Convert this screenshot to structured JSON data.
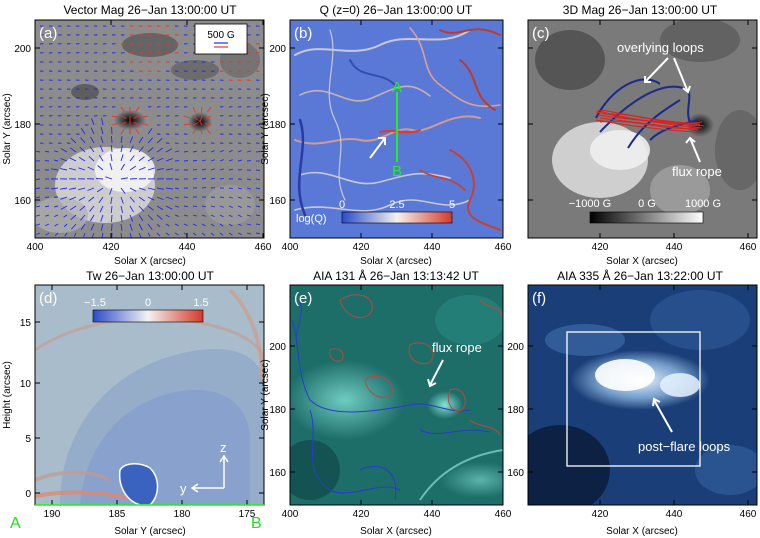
{
  "panels": [
    {
      "letter": "(a)",
      "title": "Vector Mag   26−Jan 13:00:00 UT",
      "xlabel": "Solar X (arcsec)",
      "ylabel": "Solar Y (arcsec)",
      "xticks": [
        "400",
        "420",
        "440",
        "460"
      ],
      "yticks": [
        "160",
        "180",
        "200"
      ],
      "scale_label": "500 G",
      "colors": {
        "background": "#8c8c8c",
        "vector_pos": "#ff2a2a",
        "vector_neg": "#2323ff"
      }
    },
    {
      "letter": "(b)",
      "title": "Q (z=0)   26−Jan 13:00:00 UT",
      "xlabel": "Solar X (arcsec)",
      "ylabel": "Solar Y (arcsec)",
      "xticks": [
        "400",
        "420",
        "440",
        "460"
      ],
      "yticks": [
        "160",
        "180",
        "200"
      ],
      "slice_label_a": "A",
      "slice_label_b": "B",
      "colorbar_ticks": [
        "0",
        "2.5",
        "5"
      ],
      "colorbar_label": "log(Q)",
      "colors": {
        "background": "#5a79d6",
        "slice": "#22ee22"
      }
    },
    {
      "letter": "(c)",
      "title": "3D Mag   26−Jan 13:00:00 UT",
      "xlabel": "Solar X (arcsec)",
      "xticks": [
        "420",
        "440",
        "460"
      ],
      "yticks": [
        "160",
        "180",
        "200"
      ],
      "annotation_loops": "overlying loops",
      "annotation_rope": "flux rope",
      "colorbar_ticks": [
        "−1000 G",
        "0 G",
        "1000 G"
      ],
      "colors": {
        "background": "#7a7a7a",
        "loops": "#1a2a8a",
        "rope": "#e02020"
      }
    },
    {
      "letter": "(d)",
      "title": "Tw   26−Jan 13:00:00 UT",
      "xlabel": "Solar Y (arcsec)",
      "ylabel": "Height (arcsec)",
      "xticks": [
        "190",
        "185",
        "180",
        "175"
      ],
      "yticks": [
        "0",
        "5",
        "10",
        "15"
      ],
      "colorbar_ticks": [
        "−1.5",
        "0",
        "1.5"
      ],
      "axis_z": "z",
      "axis_y": "y",
      "end_label_a": "A",
      "end_label_b": "B",
      "colors": {
        "background": "#a9bccb",
        "core": "#3a63c0",
        "end_labels": "#22dd22"
      }
    },
    {
      "letter": "(e)",
      "title": "AIA 131 Å   26−Jan 13:13:42 UT",
      "xlabel": "Solar X (arcsec)",
      "ylabel": "Solar Y (arcsec)",
      "xticks": [
        "400",
        "420",
        "440",
        "460"
      ],
      "yticks": [
        "160",
        "180",
        "200"
      ],
      "annotation": "flux rope",
      "colors": {
        "background": "#1d6d69",
        "contour_pos": "#b54a3a",
        "contour_neg": "#2a3ad0"
      }
    },
    {
      "letter": "(f)",
      "title": "AIA 335 Å   26−Jan 13:22:00 UT",
      "xlabel": "Solar X (arcsec)",
      "xticks": [
        "420",
        "440",
        "460"
      ],
      "yticks": [
        "160",
        "180",
        "200"
      ],
      "annotation": "post−flare loops",
      "colors": {
        "background": "#1a3f78",
        "bright": "#e6f3ff"
      }
    }
  ]
}
